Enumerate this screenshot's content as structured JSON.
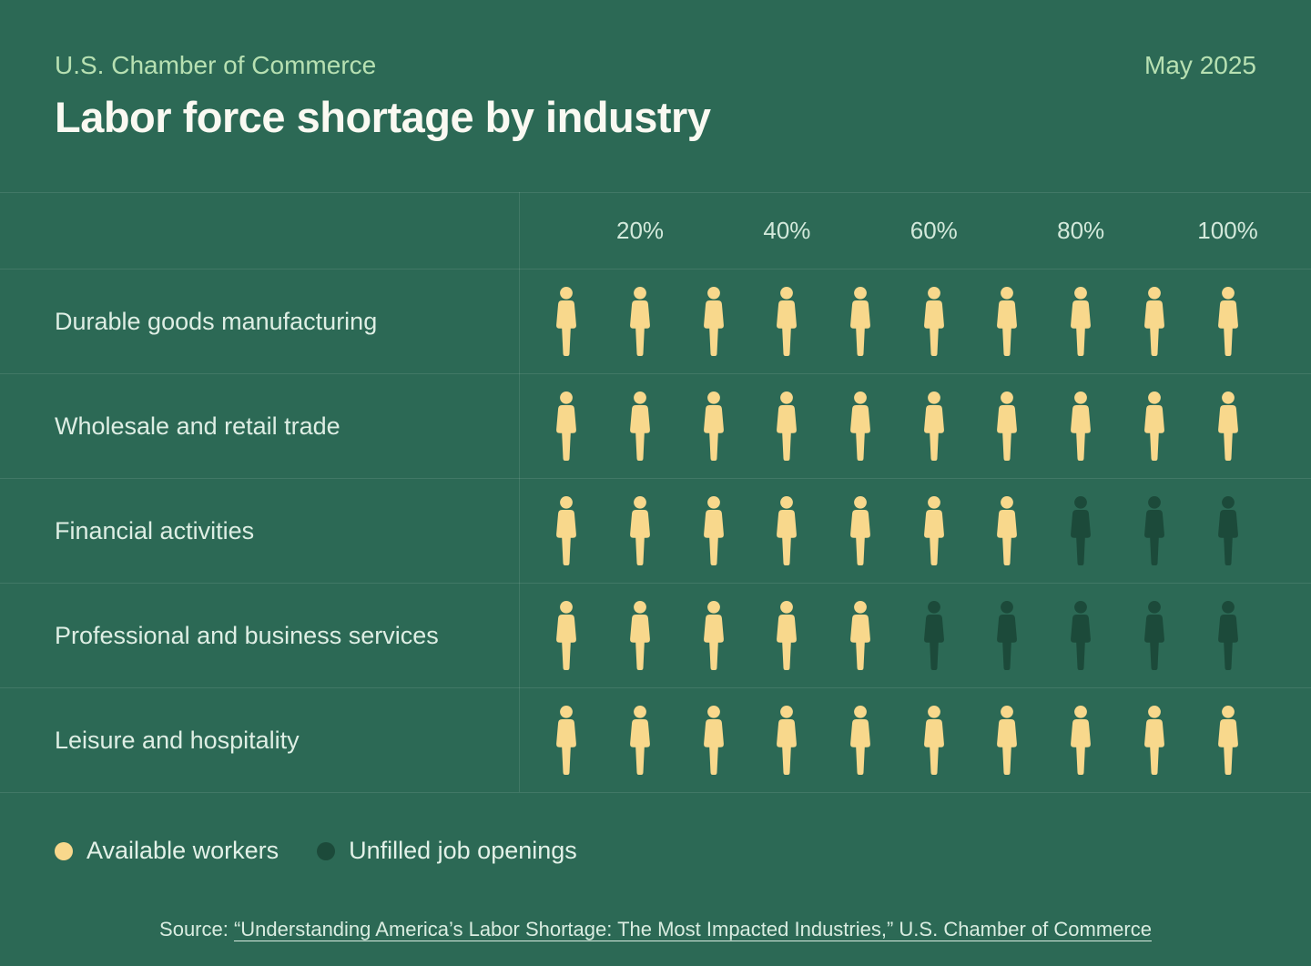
{
  "page": {
    "background": "#2C6955"
  },
  "header": {
    "eyebrow": "U.S. Chamber of Commerce",
    "date": "May 2025",
    "title": "Labor force shortage by industry"
  },
  "chart_data": {
    "type": "bar",
    "variant": "pictogram-isotype",
    "title": "Labor force shortage by industry",
    "xlabel": "",
    "ylabel": "",
    "xlim": [
      0,
      100
    ],
    "x_ticks": [
      "20%",
      "40%",
      "60%",
      "80%",
      "100%"
    ],
    "icons_per_row": 10,
    "icon_unit_percent": 10,
    "grid": false,
    "legend_position": "bottom-left",
    "categories": [
      "Durable goods manufacturing",
      "Wholesale and retail trade",
      "Financial activities",
      "Professional and business services",
      "Leisure and hospitality"
    ],
    "series": [
      {
        "name": "Available workers",
        "color": "#F8D88C",
        "values": [
          100,
          100,
          70,
          50,
          100
        ]
      },
      {
        "name": "Unfilled job openings",
        "color": "#1C4A3A",
        "values": [
          0,
          0,
          30,
          50,
          0
        ]
      }
    ],
    "rows": [
      {
        "label": "Durable goods manufacturing",
        "available_icons": 10,
        "unfilled_icons": 0
      },
      {
        "label": "Wholesale and retail trade",
        "available_icons": 10,
        "unfilled_icons": 0
      },
      {
        "label": "Financial activities",
        "available_icons": 7,
        "unfilled_icons": 3
      },
      {
        "label": "Professional and business services",
        "available_icons": 5,
        "unfilled_icons": 5
      },
      {
        "label": "Leisure and hospitality",
        "available_icons": 10,
        "unfilled_icons": 0
      }
    ]
  },
  "legend": {
    "items": [
      {
        "label": "Available workers",
        "color": "#F8D88C"
      },
      {
        "label": "Unfilled job openings",
        "color": "#1C4A3A"
      }
    ]
  },
  "source": {
    "prefix": "Source: ",
    "link_text": "“Understanding America’s Labor Shortage: The Most Impacted Industries,” U.S. Chamber of Commerce"
  }
}
